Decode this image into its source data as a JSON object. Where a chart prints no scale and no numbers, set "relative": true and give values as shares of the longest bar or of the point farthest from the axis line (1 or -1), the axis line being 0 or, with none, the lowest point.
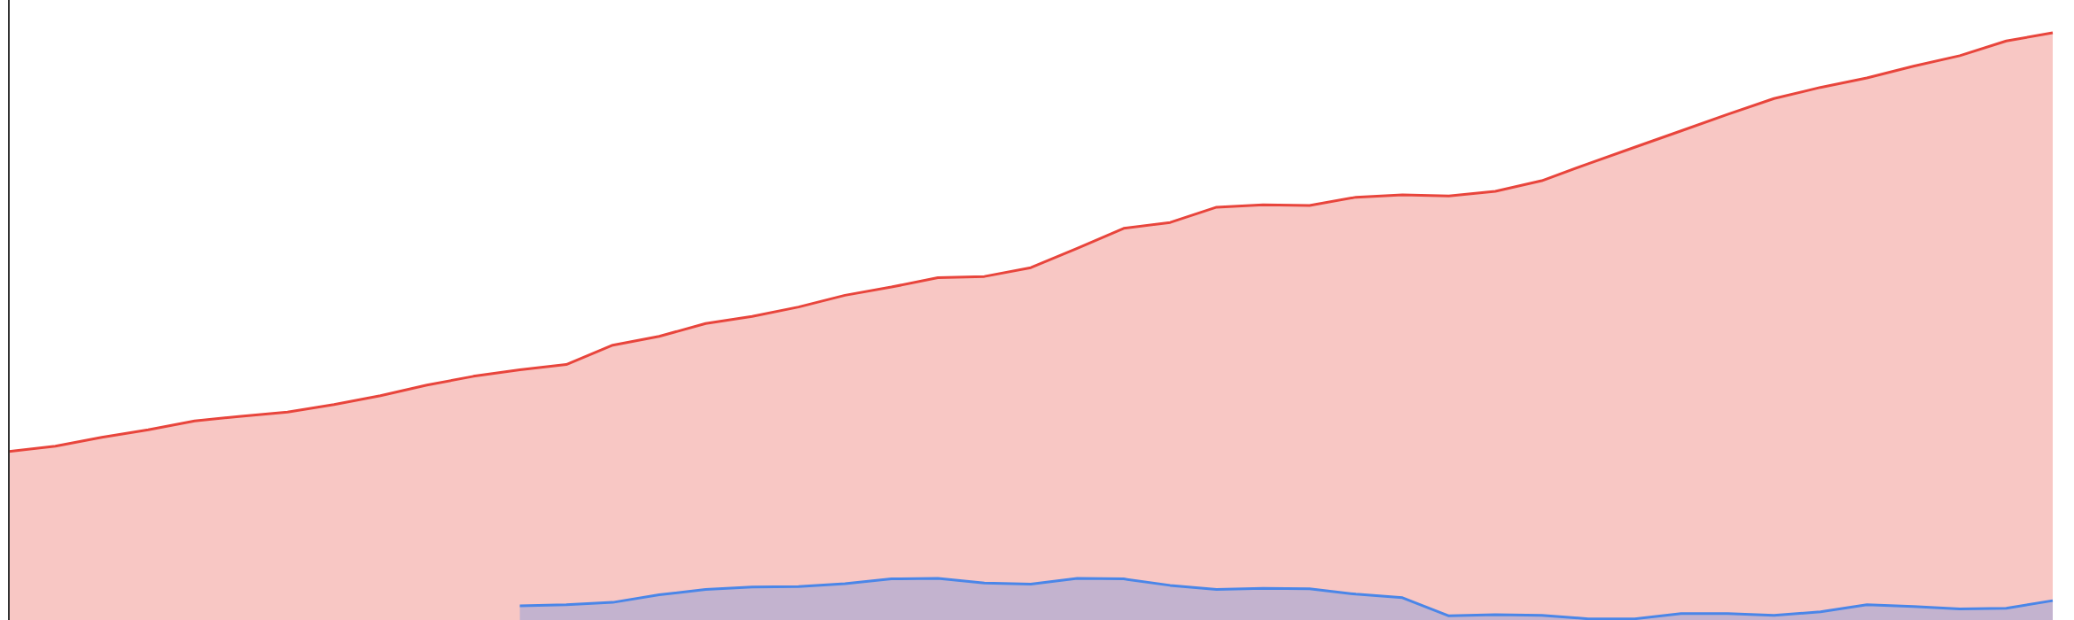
{
  "chart_data": {
    "type": "area",
    "relative": true,
    "categories": [
      null,
      null,
      null,
      null,
      null,
      null,
      null,
      null,
      null,
      null,
      null,
      null,
      null,
      null,
      null,
      null,
      null,
      null,
      null,
      null,
      null,
      null,
      null,
      null,
      null,
      null,
      null,
      null,
      null,
      null,
      null,
      null,
      null,
      null,
      null,
      null,
      null,
      null,
      null,
      null,
      null,
      null,
      null,
      null,
      null
    ],
    "series": [
      {
        "color": "#e8453c",
        "values": [
          0.287,
          0.296,
          0.311,
          0.324,
          0.339,
          0.347,
          0.354,
          0.367,
          0.382,
          0.4,
          0.415,
          0.426,
          0.435,
          0.468,
          0.483,
          0.505,
          0.517,
          0.533,
          0.553,
          0.567,
          0.583,
          0.585,
          0.6,
          0.633,
          0.667,
          0.677,
          0.703,
          0.707,
          0.706,
          0.72,
          0.724,
          0.722,
          0.73,
          0.748,
          0.777,
          0.805,
          0.833,
          0.861,
          0.888,
          0.907,
          0.923,
          0.943,
          0.961,
          0.986,
          1
        ]
      },
      {
        "color": "#4a86e8",
        "values": [
          null,
          null,
          null,
          null,
          null,
          null,
          null,
          null,
          null,
          null,
          null,
          0.024,
          0.026,
          0.03,
          0.043,
          0.052,
          0.056,
          0.057,
          0.062,
          0.07,
          0.071,
          0.063,
          0.061,
          0.071,
          0.07,
          0.059,
          0.052,
          0.054,
          0.053,
          0.044,
          0.038,
          0.007,
          0.009,
          0.008,
          0.002,
          0.002,
          0.011,
          0.011,
          0.008,
          0.014,
          0.026,
          0.023,
          0.019,
          0.02,
          0.033
        ]
      }
    ]
  }
}
